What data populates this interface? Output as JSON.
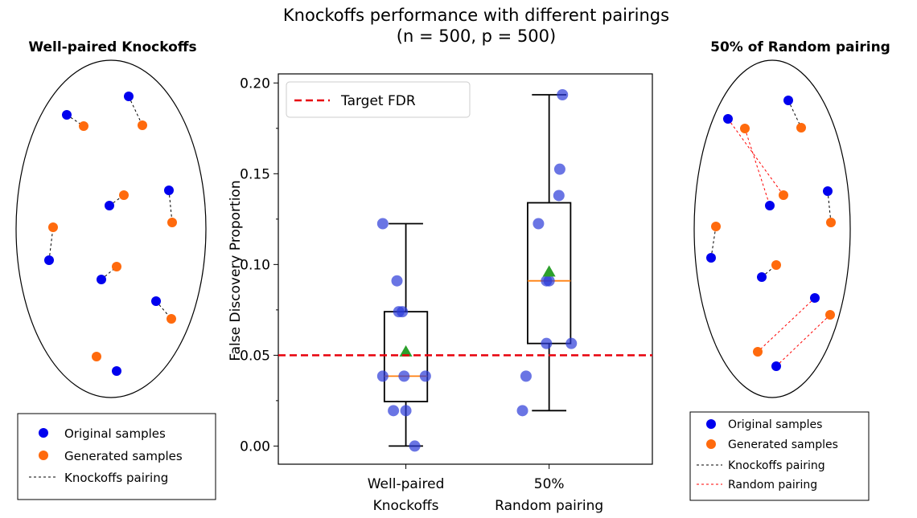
{
  "figure": {
    "title": "Knockoffs performance with different pairings",
    "subtitle": "(n = 500, p = 500)"
  },
  "chart_data": {
    "type": "boxplot",
    "title": "Knockoffs performance with different pairings",
    "subtitle": "(n = 500, p = 500)",
    "ylabel": "False Discovery Proportion",
    "xlabel": "",
    "ylim": [
      -0.01,
      0.205
    ],
    "yticks": [
      "0.00",
      "0.05",
      "0.10",
      "0.15",
      "0.20"
    ],
    "categories": [
      "Well-paired Knockoffs",
      "50% Random pairing"
    ],
    "category_lines": [
      [
        "Well-paired",
        "Knockoffs"
      ],
      [
        "50%",
        "Random pairing"
      ]
    ],
    "target_fdr": {
      "label": "Target FDR",
      "value": 0.05,
      "color": "#e8000b"
    },
    "legend_position": "top-left",
    "boxes": [
      {
        "category": "Well-paired Knockoffs",
        "whisker_low": 0.0,
        "q1": 0.0245,
        "median": 0.0385,
        "q3": 0.074,
        "whisker_high": 0.1225,
        "mean": 0.052
      },
      {
        "category": "50% Random pairing",
        "whisker_low": 0.0195,
        "q1": 0.0565,
        "median": 0.091,
        "q3": 0.134,
        "whisker_high": 0.1935,
        "mean": 0.096
      }
    ],
    "points": [
      {
        "category": "Well-paired Knockoffs",
        "values": [
          0.1225,
          0.091,
          0.074,
          0.074,
          0.0385,
          0.0385,
          0.0385,
          0.0195,
          0.0195,
          0.0
        ],
        "jitter": [
          -0.26,
          -0.1,
          -0.08,
          -0.04,
          -0.26,
          -0.02,
          0.22,
          -0.14,
          0.0,
          0.1
        ]
      },
      {
        "category": "50% Random pairing",
        "values": [
          0.1935,
          0.1525,
          0.138,
          0.1225,
          0.091,
          0.091,
          0.0565,
          0.0565,
          0.0385,
          0.0195
        ],
        "jitter": [
          0.15,
          0.12,
          0.11,
          -0.12,
          -0.03,
          0.0,
          -0.03,
          0.25,
          -0.26,
          -0.3
        ]
      }
    ],
    "colors": {
      "points": "#2b3bd9",
      "box": "#000000",
      "median": "#ff7f0e",
      "mean": "#2ca02c",
      "target": "#e8000b"
    }
  },
  "panels": {
    "left": {
      "title": "Well-paired Knockoffs",
      "legend": {
        "original": "Original samples",
        "generated": "Generated samples",
        "knockoffs": "Knockoffs pairing"
      }
    },
    "right": {
      "title": "50% of Random pairing",
      "legend": {
        "original": "Original samples",
        "generated": "Generated samples",
        "knockoffs": "Knockoffs pairing",
        "random": "Random pairing"
      }
    },
    "colors": {
      "original": "#0000ee",
      "generated": "#ff6a0d",
      "knockoffs_line": "#000000",
      "random_line": "#ff0000"
    }
  }
}
